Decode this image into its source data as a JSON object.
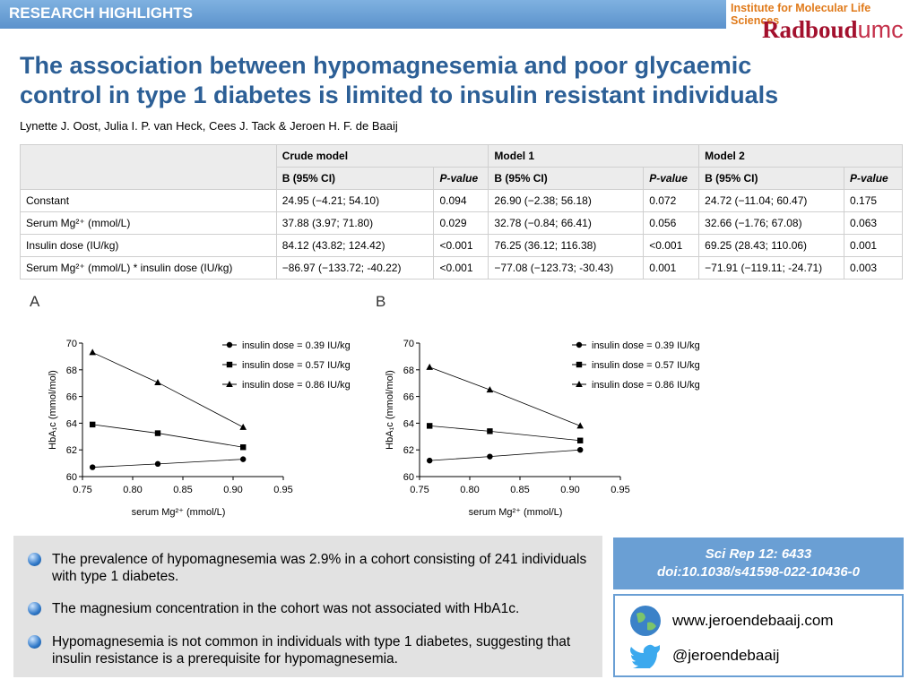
{
  "header": {
    "banner": "RESEARCH HIGHLIGHTS",
    "institute": "Institute for Molecular Life Sciences",
    "logo_main": "Radboud",
    "logo_suffix": "umc"
  },
  "title": [
    "The association between hypomagnesemia and poor glycaemic",
    "control in type 1 diabetes is limited to insulin resistant individuals"
  ],
  "authors": "Lynette J. Oost, Julia I. P. van Heck, Cees J. Tack & Jeroen H. F. de Baaij",
  "table": {
    "groups": [
      "Crude model",
      "Model 1",
      "Model 2"
    ],
    "subheaders": [
      "B (95% CI)",
      "P-value",
      "B (95% CI)",
      "P-value",
      "B (95% CI)",
      "P-value"
    ],
    "rows": [
      [
        "Constant",
        "24.95 (−4.21; 54.10)",
        "0.094",
        "26.90 (−2.38; 56.18)",
        "0.072",
        "24.72 (−11.04; 60.47)",
        "0.175"
      ],
      [
        "Serum Mg²⁺ (mmol/L)",
        "37.88 (3.97; 71.80)",
        "0.029",
        "32.78 (−0.84; 66.41)",
        "0.056",
        "32.66 (−1.76; 67.08)",
        "0.063"
      ],
      [
        "Insulin dose (IU/kg)",
        "84.12 (43.82; 124.42)",
        "<0.001",
        "76.25 (36.12; 116.38)",
        "<0.001",
        "69.25 (28.43; 110.06)",
        "0.001"
      ],
      [
        "Serum Mg²⁺ (mmol/L) * insulin dose (IU/kg)",
        "−86.97 (−133.72; -40.22)",
        "<0.001",
        "−77.08 (−123.73; -30.43)",
        "0.001",
        "−71.91 (−119.11; -24.71)",
        "0.003"
      ]
    ]
  },
  "chart_data": [
    {
      "type": "line",
      "panel": "A",
      "x_label": "serum Mg²⁺ (mmol/L)",
      "y_label": "HbA₁c (mmol/mol)",
      "x": [
        0.76,
        0.825,
        0.91
      ],
      "xlim": [
        0.75,
        0.95
      ],
      "xticks": [
        0.75,
        {
          "value": 0.8,
          "label": "0.80"
        },
        0.85,
        {
          "value": 0.9,
          "label": "0.90"
        },
        0.95
      ],
      "ylim": [
        60,
        70
      ],
      "yticks": [
        60,
        62,
        64,
        66,
        68,
        70
      ],
      "legend": "upper right",
      "series": [
        {
          "name": "insulin dose = 0.39 IU/kg",
          "color": "#000000",
          "marker": "circle",
          "values": [
            60.7,
            60.95,
            61.3
          ]
        },
        {
          "name": "insulin dose = 0.57 IU/kg",
          "color": "#000000",
          "marker": "square",
          "values": [
            63.9,
            63.25,
            62.2
          ]
        },
        {
          "name": "insulin dose = 0.86 IU/kg",
          "color": "#000000",
          "marker": "triangle",
          "values": [
            69.3,
            67.05,
            63.7
          ]
        }
      ]
    },
    {
      "type": "line",
      "panel": "B",
      "x_label": "serum Mg²⁺ (mmol/L)",
      "y_label": "HbA₁c (mmol/mol)",
      "x": [
        0.76,
        0.82,
        0.91
      ],
      "xlim": [
        0.75,
        0.95
      ],
      "xticks": [
        0.75,
        {
          "value": 0.8,
          "label": "0.80"
        },
        0.85,
        {
          "value": 0.9,
          "label": "0.90"
        },
        0.95
      ],
      "ylim": [
        60,
        70
      ],
      "yticks": [
        60,
        62,
        64,
        66,
        68,
        70
      ],
      "legend": "upper right",
      "series": [
        {
          "name": "insulin dose = 0.39 IU/kg",
          "color": "#000000",
          "marker": "circle",
          "values": [
            61.2,
            61.5,
            62.0
          ]
        },
        {
          "name": "insulin dose = 0.57 IU/kg",
          "color": "#000000",
          "marker": "square",
          "values": [
            63.8,
            63.4,
            62.7
          ]
        },
        {
          "name": "insulin dose = 0.86 IU/kg",
          "color": "#000000",
          "marker": "triangle",
          "values": [
            68.2,
            66.5,
            63.8
          ]
        }
      ]
    }
  ],
  "bullets": [
    "The prevalence of hypomagnesemia was 2.9% in a cohort consisting of 241 individuals with type 1 diabetes.",
    "The magnesium concentration in the cohort was not associated with HbA1c.",
    "Hypomagnesemia is not common in individuals with type 1 diabetes, suggesting that insulin resistance is a prerequisite for hypomagnesemia."
  ],
  "reference": {
    "journal": "Sci Rep 12: 6433",
    "doi": "doi:10.1038/s41598-022-10436-0"
  },
  "links": {
    "website": "www.jeroendebaaij.com",
    "twitter": "@jeroendebaaij"
  }
}
